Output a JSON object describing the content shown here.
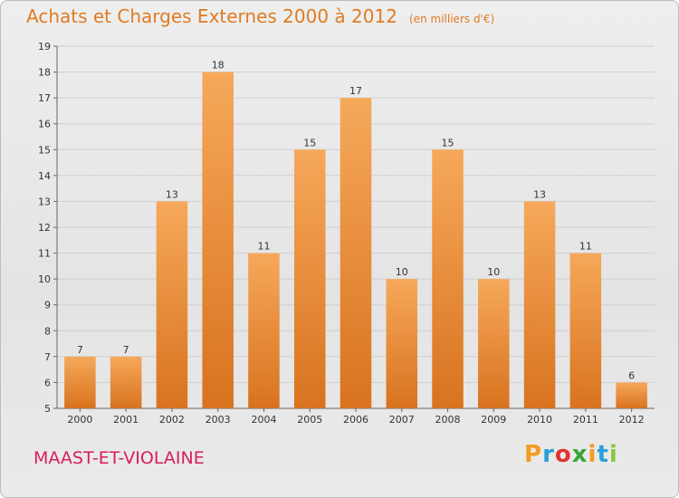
{
  "header": {
    "title": "Achats et Charges Externes 2000 à 2012",
    "unit": "(en milliers d'€)"
  },
  "footer": {
    "location": "MAAST-ET-VIOLAINE",
    "brand": "Proxiti",
    "brand_colors": [
      "#f39c1f",
      "#2b9fd8",
      "#e3342f",
      "#3aa537",
      "#f39c1f",
      "#2b9fd8",
      "#8cc63f"
    ]
  },
  "colors": {
    "title": "#e07b22",
    "location": "#d81e5b",
    "bar_light": "#f6a85a",
    "bar_dark": "#d8731f",
    "grid": "#cfcfcf"
  },
  "chart_data": {
    "type": "bar",
    "title": "Achats et Charges Externes 2000 à 2012",
    "subtitle": "(en milliers d'€)",
    "xlabel": "",
    "ylabel": "",
    "categories": [
      "2000",
      "2001",
      "2002",
      "2003",
      "2004",
      "2005",
      "2006",
      "2007",
      "2008",
      "2009",
      "2010",
      "2011",
      "2012"
    ],
    "values": [
      7,
      7,
      13,
      18,
      11,
      15,
      17,
      10,
      15,
      10,
      13,
      11,
      6
    ],
    "ylim": [
      5,
      19
    ],
    "yticks": [
      5,
      6,
      7,
      8,
      9,
      10,
      11,
      12,
      13,
      14,
      15,
      16,
      17,
      18,
      19
    ],
    "grid": true,
    "legend": "none"
  }
}
